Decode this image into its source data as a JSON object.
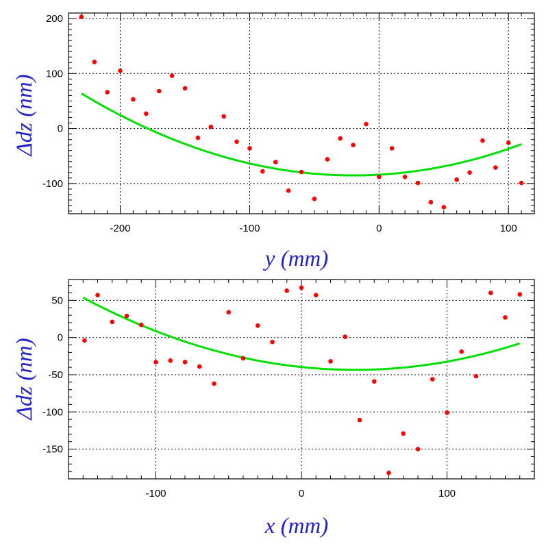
{
  "colors": {
    "points": "#ff0000",
    "fit": "#00e000",
    "axis_title": "#2222cc",
    "grid": "#000000"
  },
  "chart_data": [
    {
      "type": "scatter",
      "xlabel": "y (mm)",
      "ylabel": "Δdz (nm)",
      "xlim": [
        -240,
        120
      ],
      "ylim": [
        -155,
        210
      ],
      "xticks": [
        -200,
        -100,
        0,
        100
      ],
      "yticks": [
        -100,
        0,
        100,
        200
      ],
      "grid": true,
      "series": [
        {
          "kind": "points",
          "points": [
            [
              -230,
              203
            ],
            [
              -220,
              121
            ],
            [
              -210,
              66
            ],
            [
              -200,
              105
            ],
            [
              -190,
              53
            ],
            [
              -180,
              27
            ],
            [
              -170,
              68
            ],
            [
              -160,
              96
            ],
            [
              -150,
              73
            ],
            [
              -140,
              -17
            ],
            [
              -130,
              3
            ],
            [
              -120,
              22
            ],
            [
              -110,
              -24
            ],
            [
              -100,
              -36
            ],
            [
              -90,
              -78
            ],
            [
              -80,
              -61
            ],
            [
              -70,
              -113
            ],
            [
              -60,
              -79
            ],
            [
              -50,
              -128
            ],
            [
              -40,
              -56
            ],
            [
              -30,
              -18
            ],
            [
              -20,
              -30
            ],
            [
              -10,
              8
            ],
            [
              0,
              -88
            ],
            [
              10,
              -36
            ],
            [
              20,
              -88
            ],
            [
              30,
              -99
            ],
            [
              40,
              -134
            ],
            [
              50,
              -143
            ],
            [
              60,
              -93
            ],
            [
              70,
              -80
            ],
            [
              80,
              -22
            ],
            [
              90,
              -71
            ],
            [
              100,
              -26
            ],
            [
              110,
              -99
            ]
          ]
        },
        {
          "kind": "fit",
          "curve": "quadratic",
          "x_range": [
            -230,
            110
          ],
          "coefficients": [
            -84,
            0.133,
            0.00337
          ]
        }
      ]
    },
    {
      "type": "scatter",
      "xlabel": "x (mm)",
      "ylabel": "Δdz (nm)",
      "xlim": [
        -160,
        160
      ],
      "ylim": [
        -190,
        78
      ],
      "xticks": [
        -100,
        0,
        100
      ],
      "yticks": [
        -150,
        -100,
        -50,
        0,
        50
      ],
      "grid": true,
      "series": [
        {
          "kind": "points",
          "points": [
            [
              -149,
              -4
            ],
            [
              -140,
              57
            ],
            [
              -130,
              21
            ],
            [
              -120,
              29
            ],
            [
              -110,
              17
            ],
            [
              -100,
              -33
            ],
            [
              -90,
              -31
            ],
            [
              -80,
              -33
            ],
            [
              -70,
              -39
            ],
            [
              -60,
              -62
            ],
            [
              -50,
              34
            ],
            [
              -40,
              -28
            ],
            [
              -30,
              16
            ],
            [
              -20,
              -6
            ],
            [
              -10,
              63
            ],
            [
              0,
              67
            ],
            [
              10,
              57
            ],
            [
              20,
              -32
            ],
            [
              30,
              1
            ],
            [
              40,
              -111
            ],
            [
              50,
              -59
            ],
            [
              60,
              -182
            ],
            [
              70,
              -129
            ],
            [
              80,
              -150
            ],
            [
              90,
              -56
            ],
            [
              100,
              -101
            ],
            [
              110,
              -19
            ],
            [
              120,
              -52
            ],
            [
              130,
              60
            ],
            [
              140,
              27
            ],
            [
              150,
              58
            ]
          ]
        },
        {
          "kind": "fit",
          "curve": "quadratic",
          "x_range": [
            -150,
            150
          ],
          "coefficients": [
            -39.7,
            -0.205,
            0.00278
          ]
        }
      ]
    }
  ]
}
